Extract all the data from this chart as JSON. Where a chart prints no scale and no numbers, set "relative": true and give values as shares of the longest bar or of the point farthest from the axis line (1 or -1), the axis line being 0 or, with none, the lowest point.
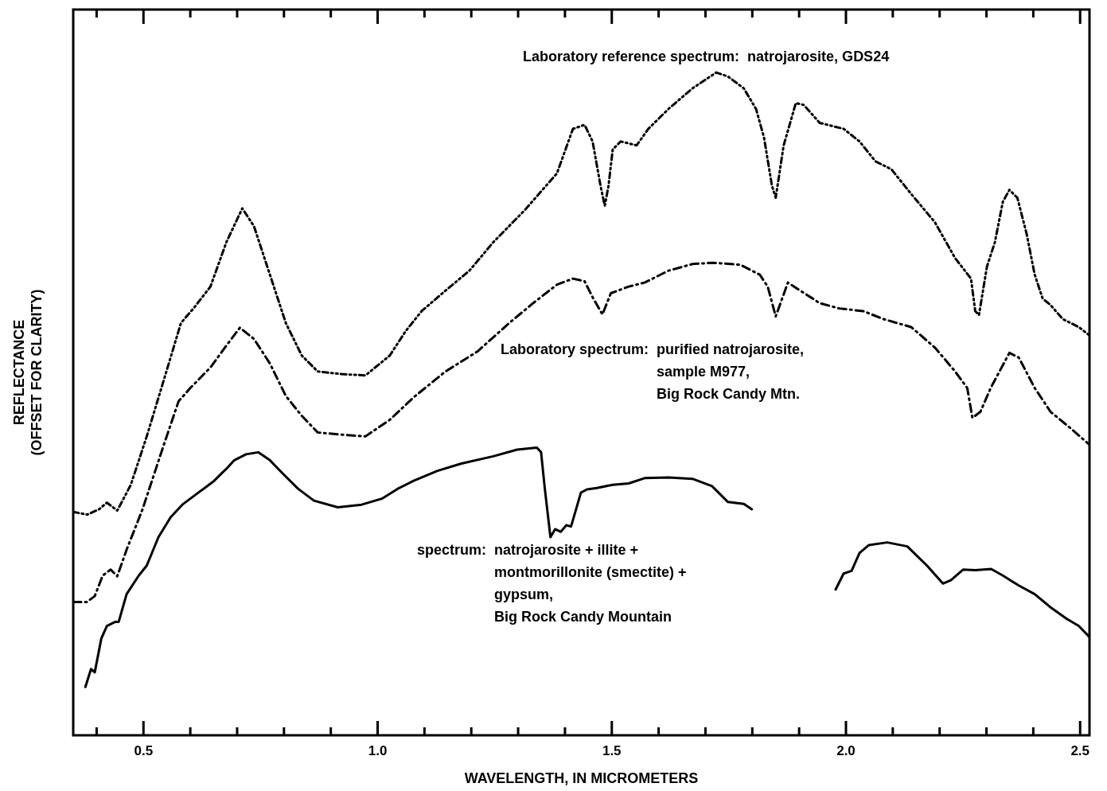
{
  "chart_data": {
    "type": "line",
    "relative": true,
    "xlabel": "WAVELENGTH, IN MICROMETERS",
    "ylabel": "REFLECTANCE\n(OFFSET FOR CLARITY)",
    "xlim": [
      0.35,
      2.52
    ],
    "xticks": [
      {
        "value": 0.4,
        "label": null
      },
      {
        "value": 0.5,
        "label": "0.5"
      },
      {
        "value": 0.6,
        "label": null
      },
      {
        "value": 0.7,
        "label": null
      },
      {
        "value": 0.8,
        "label": null
      },
      {
        "value": 0.9,
        "label": null
      },
      {
        "value": 1.0,
        "label": "1.0"
      },
      {
        "value": 1.1,
        "label": null
      },
      {
        "value": 1.2,
        "label": null
      },
      {
        "value": 1.3,
        "label": null
      },
      {
        "value": 1.4,
        "label": null
      },
      {
        "value": 1.5,
        "label": "1.5"
      },
      {
        "value": 1.6,
        "label": null
      },
      {
        "value": 1.7,
        "label": null
      },
      {
        "value": 1.8,
        "label": null
      },
      {
        "value": 1.9,
        "label": null
      },
      {
        "value": 2.0,
        "label": "2.0"
      },
      {
        "value": 2.1,
        "label": null
      },
      {
        "value": 2.2,
        "label": null
      },
      {
        "value": 2.3,
        "label": null
      },
      {
        "value": 2.4,
        "label": null
      },
      {
        "value": 2.5,
        "label": "2.5"
      }
    ],
    "grid": false,
    "legend": false,
    "marker": "none",
    "series": [
      {
        "color": "#000000",
        "line_style": "dotted",
        "x": [
          0.35,
          0.38,
          0.405,
          0.422,
          0.444,
          0.473,
          0.507,
          0.549,
          0.58,
          0.609,
          0.643,
          0.677,
          0.711,
          0.736,
          0.77,
          0.804,
          0.838,
          0.872,
          0.923,
          0.974,
          1.026,
          1.06,
          1.094,
          1.145,
          1.196,
          1.247,
          1.315,
          1.383,
          1.417,
          1.442,
          1.459,
          1.476,
          1.485,
          1.493,
          1.502,
          1.519,
          1.553,
          1.578,
          1.621,
          1.672,
          1.723,
          1.748,
          1.782,
          1.808,
          1.825,
          1.842,
          1.85,
          1.867,
          1.893,
          1.91,
          1.944,
          1.995,
          2.029,
          2.063,
          2.097,
          2.139,
          2.19,
          2.233,
          2.267,
          2.276,
          2.284,
          2.301,
          2.318,
          2.335,
          2.349,
          2.366,
          2.386,
          2.403,
          2.42,
          2.437,
          2.463,
          2.497,
          2.519
        ],
        "values": [
          0.337,
          0.333,
          0.341,
          0.351,
          0.339,
          0.378,
          0.451,
          0.549,
          0.622,
          0.646,
          0.677,
          0.744,
          0.795,
          0.768,
          0.695,
          0.622,
          0.573,
          0.549,
          0.545,
          0.543,
          0.573,
          0.61,
          0.64,
          0.671,
          0.701,
          0.744,
          0.793,
          0.848,
          0.915,
          0.921,
          0.896,
          0.829,
          0.799,
          0.829,
          0.884,
          0.896,
          0.89,
          0.915,
          0.945,
          0.976,
          1,
          0.994,
          0.976,
          0.945,
          0.902,
          0.829,
          0.811,
          0.89,
          0.954,
          0.951,
          0.924,
          0.915,
          0.896,
          0.866,
          0.854,
          0.817,
          0.774,
          0.72,
          0.689,
          0.64,
          0.634,
          0.707,
          0.744,
          0.805,
          0.823,
          0.811,
          0.756,
          0.695,
          0.659,
          0.649,
          0.628,
          0.616,
          0.604
        ]
      },
      {
        "color": "#000000",
        "line_style": "dashed",
        "x": [
          0.35,
          0.379,
          0.396,
          0.413,
          0.43,
          0.444,
          0.464,
          0.498,
          0.541,
          0.575,
          0.6,
          0.643,
          0.677,
          0.706,
          0.736,
          0.77,
          0.804,
          0.838,
          0.872,
          0.915,
          0.974,
          1.026,
          1.077,
          1.145,
          1.213,
          1.281,
          1.332,
          1.383,
          1.417,
          1.442,
          1.459,
          1.48,
          1.498,
          1.536,
          1.57,
          1.621,
          1.672,
          1.716,
          1.774,
          1.816,
          1.833,
          1.85,
          1.876,
          1.944,
          1.986,
          2.037,
          2.08,
          2.139,
          2.19,
          2.233,
          2.259,
          2.27,
          2.287,
          2.309,
          2.349,
          2.369,
          2.403,
          2.437,
          2.48,
          2.519
        ],
        "values": [
          0.201,
          0.201,
          0.21,
          0.241,
          0.25,
          0.24,
          0.28,
          0.341,
          0.433,
          0.504,
          0.524,
          0.555,
          0.588,
          0.615,
          0.598,
          0.561,
          0.512,
          0.482,
          0.457,
          0.454,
          0.451,
          0.476,
          0.51,
          0.549,
          0.579,
          0.622,
          0.652,
          0.68,
          0.689,
          0.685,
          0.661,
          0.635,
          0.667,
          0.677,
          0.683,
          0.701,
          0.711,
          0.713,
          0.71,
          0.695,
          0.677,
          0.632,
          0.683,
          0.652,
          0.644,
          0.64,
          0.628,
          0.616,
          0.585,
          0.549,
          0.524,
          0.479,
          0.488,
          0.524,
          0.577,
          0.57,
          0.524,
          0.488,
          0.463,
          0.439
        ]
      },
      {
        "color": "#000000",
        "line_style": "solid",
        "x": [
          0.376,
          0.388,
          0.396,
          0.41,
          0.422,
          0.439,
          0.447,
          0.464,
          0.49,
          0.507,
          0.532,
          0.558,
          0.583,
          0.617,
          0.651,
          0.668,
          0.677,
          0.694,
          0.719,
          0.745,
          0.77,
          0.796,
          0.83,
          0.864,
          0.915,
          0.966,
          1.009,
          1.043,
          1.077,
          1.128,
          1.179,
          1.247,
          1.298,
          1.34,
          1.349,
          1.357,
          1.369,
          1.379,
          1.391,
          1.403,
          1.413,
          1.434,
          1.447,
          1.468,
          1.502,
          1.536,
          1.57,
          1.621,
          1.672,
          1.714,
          1.748,
          1.782,
          1.799,
          1.88,
          1.978,
          1.995,
          2.012,
          2.029,
          2.049,
          2.088,
          2.131,
          2.173,
          2.207,
          2.224,
          2.25,
          2.276,
          2.31,
          2.335,
          2.369,
          2.403,
          2.437,
          2.471,
          2.497,
          2.519
        ],
        "values": [
          0.073,
          0.1,
          0.095,
          0.146,
          0.165,
          0.171,
          0.171,
          0.213,
          0.241,
          0.256,
          0.299,
          0.329,
          0.348,
          0.366,
          0.384,
          0.396,
          0.402,
          0.415,
          0.424,
          0.427,
          0.415,
          0.396,
          0.372,
          0.354,
          0.344,
          0.348,
          0.357,
          0.372,
          0.384,
          0.399,
          0.41,
          0.421,
          0.431,
          0.434,
          0.427,
          0.372,
          0.299,
          0.311,
          0.307,
          0.317,
          0.315,
          0.366,
          0.371,
          0.373,
          0.378,
          0.38,
          0.388,
          0.389,
          0.387,
          0.376,
          0.352,
          0.349,
          0.341,
          null,
          0.22,
          0.244,
          0.248,
          0.275,
          0.287,
          0.291,
          0.285,
          0.256,
          0.229,
          0.234,
          0.25,
          0.249,
          0.251,
          0.241,
          0.226,
          0.213,
          0.193,
          0.176,
          0.165,
          0.149
        ]
      }
    ],
    "annotations": [
      "Laboratory reference spectrum:  natrojarosite, GDS24",
      "Laboratory spectrum:  purified natrojarosite,\nsample M977,\nBig Rock Candy Mtn.",
      "spectrum:  natrojarosite + illite +\nmontmorillonite (smectite) +\ngypsum,\nBig Rock Candy Mountain"
    ]
  }
}
